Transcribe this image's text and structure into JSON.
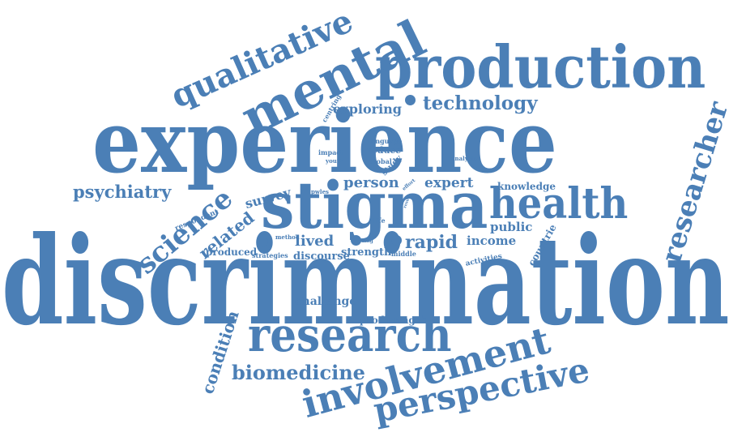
{
  "color": "#4b7fb6",
  "words": {
    "discrimination": "discrimination",
    "experience": "experience",
    "stigma": "stigma",
    "production": "production",
    "research": "research",
    "involvement": "involvement",
    "perspective": "perspective",
    "mental": "mental",
    "qualitative": "qualitative",
    "health": "health",
    "biomedicine": "biomedicine",
    "technology": "technology",
    "researcher": "researcher",
    "science": "science",
    "psychiatry": "psychiatry",
    "condition": "condition",
    "related": "related",
    "rapid": "rapid",
    "lived": "lived",
    "person": "person",
    "expert": "expert",
    "survey": "survey",
    "exploring": "exploring",
    "income": "income",
    "public": "public",
    "knowledge": "knowledge",
    "countrie": "countrie",
    "challenge": "challenge",
    "producing": "producing",
    "produced": "produced",
    "discourse": "discourse",
    "strength": "strength",
    "respondent": "respondent",
    "strategies": "strategies",
    "method": "method",
    "middle": "middle",
    "activities": "activities",
    "reduce": "reduce",
    "global": "global",
    "study": "study",
    "language": "language",
    "analysis": "analysis",
    "impact": "impact",
    "youth": "youth",
    "centring": "centring",
    "pwles": "pwles",
    "effort": "effort",
    "finding": "finding",
    "life": "life",
    "result": "result"
  }
}
